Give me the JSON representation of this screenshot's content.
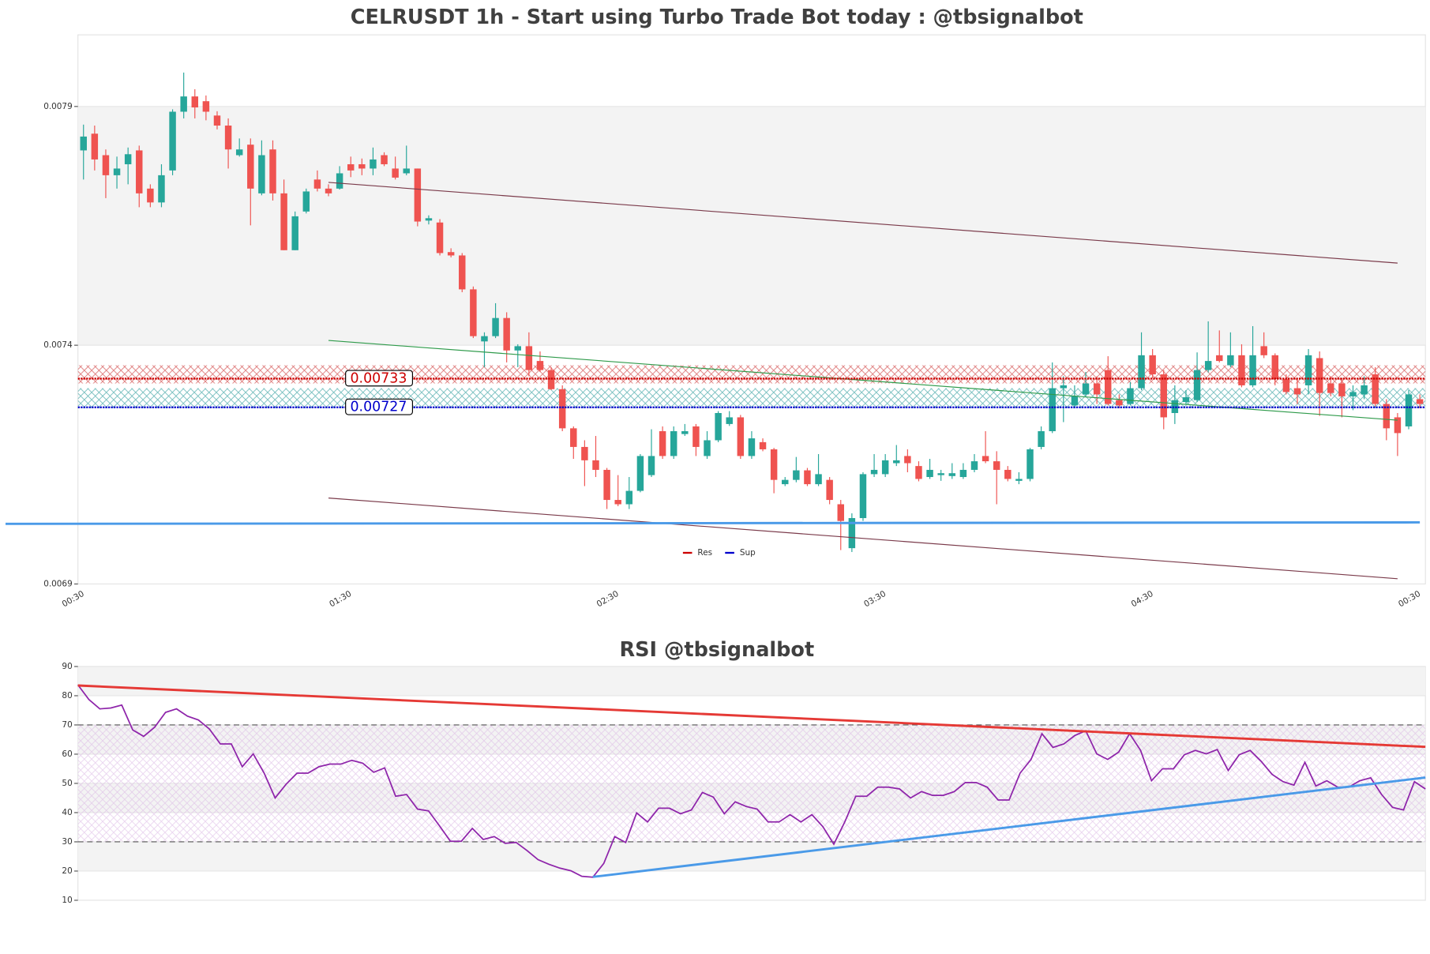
{
  "chart_data": [
    {
      "type": "candlestick",
      "title": "CELRUSDT 1h - Start using Turbo Trade Bot today : @tbsignalbot",
      "categories": [
        "00:30",
        null,
        null,
        null,
        null,
        null,
        null,
        null,
        null,
        null,
        null,
        null,
        null,
        null,
        null,
        null,
        null,
        null,
        null,
        null,
        null,
        null,
        null,
        null,
        "01:30",
        null,
        null,
        null,
        null,
        null,
        null,
        null,
        null,
        null,
        null,
        null,
        null,
        null,
        null,
        null,
        null,
        null,
        null,
        null,
        null,
        null,
        null,
        null,
        "02:30",
        null,
        null,
        null,
        null,
        null,
        null,
        null,
        null,
        null,
        null,
        null,
        null,
        null,
        null,
        null,
        null,
        null,
        null,
        null,
        null,
        null,
        null,
        null,
        "03:30",
        null,
        null,
        null,
        null,
        null,
        null,
        null,
        null,
        null,
        null,
        null,
        null,
        null,
        null,
        null,
        null,
        null,
        null,
        null,
        null,
        null,
        null,
        null,
        "04:30",
        null,
        null,
        null,
        null,
        null,
        null,
        null,
        null,
        null,
        null,
        null,
        null,
        null,
        null,
        null,
        null,
        null,
        null,
        null,
        null,
        null,
        null,
        null,
        "00:30"
      ],
      "open": [
        0.007808,
        0.007843,
        0.007798,
        0.007756,
        0.007779,
        0.007808,
        0.007728,
        0.007699,
        0.007766,
        0.007889,
        0.007921,
        0.007911,
        0.007881,
        0.00786,
        0.007798,
        0.00782,
        0.007718,
        0.00781,
        0.007718,
        0.007599,
        0.00768,
        0.007747,
        0.007728,
        0.007728,
        0.007779,
        0.007779,
        0.00777,
        0.007798,
        0.00777,
        0.00776,
        0.00777,
        0.007661,
        0.007657,
        0.007595,
        0.007588,
        0.007517,
        0.007408,
        0.007419,
        0.007457,
        0.007389,
        0.007398,
        0.007367,
        0.007348,
        0.007308,
        0.007226,
        0.007187,
        0.007159,
        0.007139,
        0.007076,
        0.007067,
        0.007095,
        0.007128,
        0.00722,
        0.007168,
        0.007214,
        0.00723,
        0.007168,
        0.007201,
        0.007235,
        0.007249,
        0.007168,
        0.007197,
        0.007182,
        0.007109,
        0.007118,
        0.007138,
        0.007109,
        0.007118,
        0.007067,
        0.006975,
        0.007038,
        0.00713,
        0.00713,
        0.007153,
        0.007168,
        0.007147,
        0.007124,
        0.007128,
        0.007126,
        0.007124,
        0.007139,
        0.007168,
        0.007157,
        0.007139,
        0.007116,
        0.00712,
        0.007187,
        0.00722,
        0.00731,
        0.007274,
        0.007297,
        0.00732,
        0.007348,
        0.007285,
        0.007277,
        0.00731,
        0.007379,
        0.007339,
        0.007258,
        0.007281,
        0.007285,
        0.007348,
        0.007379,
        0.007358,
        0.007379,
        0.007316,
        0.007398,
        0.007379,
        0.007329,
        0.00731,
        0.007316,
        0.007373,
        0.00732,
        0.00732,
        0.007293,
        0.007297,
        0.007339,
        0.007277,
        0.007249,
        0.00723,
        0.007287
      ],
      "high": [
        0.007862,
        0.00786,
        0.00781,
        0.007795,
        0.007814,
        0.007818,
        0.007737,
        0.007779,
        0.007894,
        0.007971,
        0.007936,
        0.007923,
        0.00789,
        0.007875,
        0.007833,
        0.007833,
        0.007829,
        0.007829,
        0.007747,
        0.00768,
        0.007728,
        0.007766,
        0.007737,
        0.007775,
        0.007795,
        0.007791,
        0.007814,
        0.007804,
        0.007795,
        0.007818,
        0.00777,
        0.007672,
        0.007664,
        0.007603,
        0.007593,
        0.007523,
        0.007427,
        0.007488,
        0.007469,
        0.007402,
        0.007427,
        0.007387,
        0.007354,
        0.007316,
        0.00723,
        0.007201,
        0.00721,
        0.007143,
        0.007128,
        0.007124,
        0.007172,
        0.007224,
        0.00723,
        0.00723,
        0.007235,
        0.007235,
        0.00722,
        0.007262,
        0.007262,
        0.007254,
        0.00722,
        0.007205,
        0.007185,
        0.007124,
        0.007166,
        0.007143,
        0.007172,
        0.007124,
        0.007076,
        0.007048,
        0.007134,
        0.007172,
        0.007172,
        0.007191,
        0.007182,
        0.007157,
        0.007162,
        0.007139,
        0.007153,
        0.007153,
        0.007172,
        0.00722,
        0.007178,
        0.007147,
        0.007134,
        0.007185,
        0.00723,
        0.007364,
        0.007335,
        0.007316,
        0.007344,
        0.007335,
        0.007377,
        0.007297,
        0.007323,
        0.007427,
        0.007392,
        0.007348,
        0.007316,
        0.007306,
        0.007385,
        0.00745,
        0.007431,
        0.007427,
        0.007402,
        0.00744,
        0.007427,
        0.007383,
        0.007339,
        0.007329,
        0.007392,
        0.007387,
        0.007335,
        0.007331,
        0.007316,
        0.007335,
        0.007354,
        0.007287,
        0.007258,
        0.007306,
        0.007297
      ],
      "low": [
        0.007747,
        0.007766,
        0.007708,
        0.007728,
        0.007737,
        0.007689,
        0.007689,
        0.007689,
        0.007756,
        0.007875,
        0.007875,
        0.007871,
        0.007852,
        0.00777,
        0.007795,
        0.007651,
        0.007714,
        0.007703,
        0.007599,
        0.007599,
        0.007676,
        0.007722,
        0.007712,
        0.007726,
        0.007752,
        0.007756,
        0.007756,
        0.007775,
        0.007747,
        0.007756,
        0.007649,
        0.007653,
        0.007588,
        0.007584,
        0.007511,
        0.007415,
        0.007354,
        0.007415,
        0.007364,
        0.007354,
        0.007335,
        0.007344,
        0.007306,
        0.00722,
        0.007162,
        0.007105,
        0.007124,
        0.007057,
        0.007063,
        0.007057,
        0.007092,
        0.007124,
        0.007162,
        0.007162,
        0.00721,
        0.007168,
        0.007162,
        0.007197,
        0.007231,
        0.007162,
        0.007162,
        0.007178,
        0.00709,
        0.007105,
        0.007113,
        0.007105,
        0.007105,
        0.007067,
        0.006971,
        0.006967,
        0.007032,
        0.007124,
        0.007124,
        0.007147,
        0.007134,
        0.007115,
        0.00712,
        0.007116,
        0.00712,
        0.00712,
        0.007134,
        0.007153,
        0.007067,
        0.007115,
        0.007109,
        0.007115,
        0.007182,
        0.007216,
        0.007239,
        0.007268,
        0.007293,
        0.007277,
        0.007274,
        0.007268,
        0.007274,
        0.007306,
        0.007331,
        0.007224,
        0.007235,
        0.007277,
        0.007281,
        0.007343,
        0.007364,
        0.007354,
        0.007312,
        0.007312,
        0.007373,
        0.007316,
        0.007297,
        0.007277,
        0.007297,
        0.007252,
        0.007293,
        0.007249,
        0.007264,
        0.007287,
        0.007272,
        0.007201,
        0.007168,
        0.007224,
        0.007268
      ],
      "close": [
        0.007837,
        0.007789,
        0.007756,
        0.00777,
        0.0078,
        0.007718,
        0.007699,
        0.007756,
        0.007889,
        0.007921,
        0.007898,
        0.007889,
        0.00786,
        0.00781,
        0.00781,
        0.007728,
        0.007798,
        0.007718,
        0.007599,
        0.00767,
        0.007722,
        0.007728,
        0.007718,
        0.00776,
        0.007766,
        0.00777,
        0.007789,
        0.007779,
        0.007751,
        0.00777,
        0.007659,
        0.007666,
        0.007593,
        0.007588,
        0.007517,
        0.007419,
        0.007419,
        0.007457,
        0.007389,
        0.007398,
        0.007348,
        0.007348,
        0.007308,
        0.007226,
        0.007187,
        0.007159,
        0.007139,
        0.007076,
        0.007067,
        0.007095,
        0.007168,
        0.007168,
        0.007168,
        0.00722,
        0.00722,
        0.007187,
        0.007201,
        0.007258,
        0.007249,
        0.007168,
        0.007205,
        0.007182,
        0.007118,
        0.007118,
        0.007138,
        0.007109,
        0.00713,
        0.007076,
        0.007032,
        0.007038,
        0.00713,
        0.007139,
        0.007159,
        0.007159,
        0.007153,
        0.00712,
        0.007139,
        0.007132,
        0.007132,
        0.007139,
        0.007157,
        0.007157,
        0.007139,
        0.00712,
        0.00712,
        0.007182,
        0.00722,
        0.00731,
        0.007316,
        0.007293,
        0.00732,
        0.007297,
        0.007277,
        0.007274,
        0.00731,
        0.007379,
        0.007339,
        0.007249,
        0.007285,
        0.007291,
        0.007348,
        0.007367,
        0.007367,
        0.007379,
        0.007316,
        0.007379,
        0.007379,
        0.007329,
        0.007302,
        0.007297,
        0.007379,
        0.0073,
        0.0073,
        0.007293,
        0.007302,
        0.007316,
        0.007277,
        0.007226,
        0.007216,
        0.007297,
        0.007277
      ],
      "up_color": "#26a69a",
      "down_color": "#ef5350",
      "ylim": [
        0.0069,
        0.00805
      ],
      "yticks": [
        0.0069,
        0.0074,
        0.0079
      ],
      "grid_bands": true,
      "levels": [
        {
          "name": "Res",
          "value": 0.00733,
          "color": "#cc0000"
        },
        {
          "name": "Sup",
          "value": 0.00727,
          "color": "#0000cc"
        }
      ],
      "zones": [
        {
          "low": 0.00732,
          "high": 0.007358,
          "color": "#cc3333"
        },
        {
          "low": 0.007268,
          "high": 0.00731,
          "color": "#2a9a9a"
        }
      ],
      "trend_lines": [
        {
          "from": [
            22,
            0.007741
          ],
          "to": [
            118,
            0.007572
          ],
          "color": "#7a3a4a",
          "width": 1
        },
        {
          "from": [
            22,
            0.00708
          ],
          "to": [
            118,
            0.006911
          ],
          "color": "#7a3a4a",
          "width": 1
        },
        {
          "from": [
            22,
            0.00741
          ],
          "to": [
            118,
            0.007243
          ],
          "color": "#2e9a4a",
          "width": 1
        },
        {
          "from": [
            -7,
            0.007026
          ],
          "to": [
            120,
            0.007029
          ],
          "color": "#4a9ae8",
          "width": 2.5
        }
      ],
      "legend": "lower center"
    },
    {
      "type": "line",
      "title": "RSI @tbsignalbot",
      "values": [
        83.7,
        78.7,
        75.5,
        75.8,
        76.8,
        68.3,
        66.1,
        69.2,
        74.3,
        75.5,
        73,
        71.7,
        68.6,
        63.5,
        63.5,
        55.7,
        60.1,
        53.5,
        45,
        49.7,
        53.5,
        53.5,
        55.7,
        56.6,
        56.6,
        57.9,
        56.9,
        53.8,
        55.3,
        45.6,
        46.2,
        41.2,
        40.6,
        35.5,
        30.2,
        30.2,
        34.6,
        30.8,
        31.8,
        29.5,
        29.8,
        27,
        23.9,
        22.3,
        21,
        20.1,
        18.2,
        17.9,
        22.6,
        31.8,
        29.8,
        39.9,
        36.8,
        41.5,
        41.5,
        39.6,
        40.9,
        46.9,
        45.3,
        39.6,
        43.7,
        42.1,
        41.2,
        36.8,
        36.8,
        39.3,
        36.8,
        39.3,
        35.2,
        29.2,
        36.8,
        45.6,
        45.6,
        48.7,
        48.7,
        48.1,
        45,
        47.2,
        45.9,
        45.9,
        47.2,
        50.3,
        50.3,
        48.7,
        44.3,
        44.3,
        53.5,
        58.2,
        67,
        62.3,
        63.5,
        66.4,
        68,
        60.1,
        58.2,
        60.7,
        67,
        61.3,
        50.9,
        55,
        55,
        59.8,
        61.3,
        60.1,
        61.6,
        54.4,
        59.8,
        61.3,
        57.6,
        53.1,
        50.6,
        49.4,
        57.2,
        49.1,
        50.9,
        48.7,
        48.7,
        50.9,
        51.9,
        46.2,
        41.8,
        40.9,
        50.6,
        48.1
      ],
      "color": "#8e24aa",
      "ylim": [
        10,
        90
      ],
      "yticks": [
        10,
        20,
        30,
        40,
        50,
        60,
        70,
        80,
        90
      ],
      "grid_bands": true,
      "hlines": [
        30,
        70
      ],
      "zone": {
        "low": 30,
        "high": 70,
        "color": "#d9b3e3"
      },
      "trend_lines": [
        {
          "from": [
            0,
            83.5
          ],
          "to": [
            123,
            62.5
          ],
          "color": "#e53935",
          "width": 2.5
        },
        {
          "from": [
            47,
            18
          ],
          "to": [
            123,
            52
          ],
          "color": "#4a9ae8",
          "width": 2.5
        }
      ]
    }
  ]
}
